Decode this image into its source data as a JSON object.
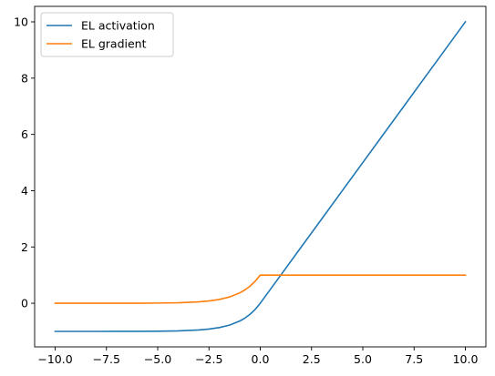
{
  "chart_data": {
    "type": "line",
    "title": "",
    "xlabel": "",
    "ylabel": "",
    "xlim": [
      -11.0,
      11.0
    ],
    "ylim": [
      -1.55,
      10.55
    ],
    "x_ticks": [
      -10.0,
      -7.5,
      -5.0,
      -2.5,
      0.0,
      2.5,
      5.0,
      7.5,
      10.0
    ],
    "x_tick_labels": [
      "−10.0",
      "−7.5",
      "−5.0",
      "−2.5",
      "0.0",
      "2.5",
      "5.0",
      "7.5",
      "10.0"
    ],
    "y_ticks": [
      0,
      2,
      4,
      6,
      8,
      10
    ],
    "y_tick_labels": [
      "0",
      "2",
      "4",
      "6",
      "8",
      "10"
    ],
    "grid": false,
    "legend_position": "upper-left",
    "series": [
      {
        "name": "EL activation",
        "color": "#1f77b4",
        "x": [
          -10,
          -9,
          -8,
          -7,
          -6,
          -5,
          -4,
          -3,
          -2.5,
          -2,
          -1.5,
          -1,
          -0.75,
          -0.5,
          -0.25,
          0,
          1,
          2,
          3,
          4,
          5,
          6,
          7,
          8,
          9,
          10
        ],
        "y": [
          -1.0,
          -1.0,
          -1.0,
          -0.999,
          -0.998,
          -0.993,
          -0.982,
          -0.95,
          -0.918,
          -0.865,
          -0.777,
          -0.632,
          -0.528,
          -0.393,
          -0.221,
          0.0,
          1.0,
          2.0,
          3.0,
          4.0,
          5.0,
          6.0,
          7.0,
          8.0,
          9.0,
          10.0
        ]
      },
      {
        "name": "EL gradient",
        "color": "#ff7f0e",
        "x": [
          -10,
          -9,
          -8,
          -7,
          -6,
          -5,
          -4,
          -3,
          -2.5,
          -2,
          -1.5,
          -1,
          -0.75,
          -0.5,
          -0.25,
          0,
          1,
          2,
          3,
          4,
          5,
          6,
          7,
          8,
          9,
          10
        ],
        "y": [
          0.0,
          0.0,
          0.0,
          0.001,
          0.002,
          0.007,
          0.018,
          0.05,
          0.082,
          0.135,
          0.223,
          0.368,
          0.472,
          0.607,
          0.779,
          1.0,
          1.0,
          1.0,
          1.0,
          1.0,
          1.0,
          1.0,
          1.0,
          1.0,
          1.0,
          1.0
        ]
      }
    ]
  }
}
